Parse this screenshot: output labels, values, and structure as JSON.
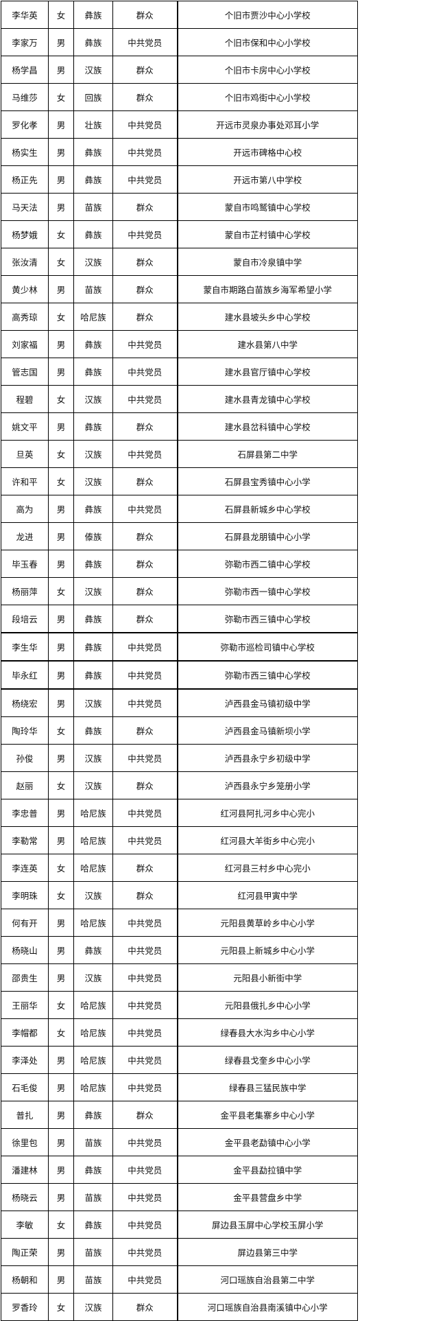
{
  "table": {
    "rows": [
      [
        "李华英",
        "女",
        "彝族",
        "群众",
        "个旧市贾沙中心小学校"
      ],
      [
        "李家万",
        "男",
        "彝族",
        "中共党员",
        "个旧市保和中心小学校"
      ],
      [
        "杨学昌",
        "男",
        "汉族",
        "群众",
        "个旧市卡房中心小学校"
      ],
      [
        "马维莎",
        "女",
        "回族",
        "群众",
        "个旧市鸡街中心小学校"
      ],
      [
        "罗化孝",
        "男",
        "壮族",
        "中共党员",
        "开远市灵泉办事处邓耳小学"
      ],
      [
        "杨实生",
        "男",
        "彝族",
        "中共党员",
        "开远市碑格中心校"
      ],
      [
        "杨正先",
        "男",
        "彝族",
        "中共党员",
        "开远市第八中学校"
      ],
      [
        "马天法",
        "男",
        "苗族",
        "群众",
        "蒙自市鸣鹫镇中心学校"
      ],
      [
        "杨梦娥",
        "女",
        "彝族",
        "中共党员",
        "蒙自市芷村镇中心学校"
      ],
      [
        "张汝清",
        "女",
        "汉族",
        "群众",
        "蒙自市冷泉镇中学"
      ],
      [
        "黄少林",
        "男",
        "苗族",
        "群众",
        "蒙自市期路白苗族乡海军希望小学"
      ],
      [
        "高秀琼",
        "女",
        "哈尼族",
        "群众",
        "建水县坡头乡中心学校"
      ],
      [
        "刘家福",
        "男",
        "彝族",
        "中共党员",
        "建水县第八中学"
      ],
      [
        "管志国",
        "男",
        "彝族",
        "中共党员",
        "建水县官厅镇中心学校"
      ],
      [
        "程碧",
        "女",
        "汉族",
        "中共党员",
        "建水县青龙镇中心学校"
      ],
      [
        "姚文平",
        "男",
        "彝族",
        "群众",
        "建水县岔科镇中心学校"
      ],
      [
        "旦英",
        "女",
        "汉族",
        "中共党员",
        "石屏县第二中学"
      ],
      [
        "许和平",
        "女",
        "汉族",
        "群众",
        "石屏县宝秀镇中心小学"
      ],
      [
        "高为",
        "男",
        "彝族",
        "中共党员",
        "石屏县新城乡中心学校"
      ],
      [
        "龙进",
        "男",
        "傣族",
        "群众",
        "石屏县龙朋镇中心小学"
      ],
      [
        "毕玉春",
        "男",
        "彝族",
        "群众",
        "弥勒市西二镇中心学校"
      ],
      [
        "杨丽萍",
        "女",
        "汉族",
        "群众",
        "弥勒市西一镇中心学校"
      ],
      [
        "段培云",
        "男",
        "彝族",
        "群众",
        "弥勒市西三镇中心学校"
      ],
      [
        "李生华",
        "男",
        "彝族",
        "中共党员",
        "弥勒市巡检司镇中心学校"
      ],
      [
        "毕永红",
        "男",
        "彝族",
        "中共党员",
        "弥勒市西三镇中心学校"
      ],
      [
        "杨绕宏",
        "男",
        "汉族",
        "中共党员",
        "泸西县金马镇初级中学"
      ],
      [
        "陶玲华",
        "女",
        "彝族",
        "群众",
        "泸西县金马镇新坝小学"
      ],
      [
        "孙俊",
        "男",
        "汉族",
        "中共党员",
        "泸西县永宁乡初级中学"
      ],
      [
        "赵丽",
        "女",
        "汉族",
        "群众",
        "泸西县永宁乡笼册小学"
      ],
      [
        "李忠普",
        "男",
        "哈尼族",
        "中共党员",
        "红河县阿扎河乡中心完小"
      ],
      [
        "李勒常",
        "男",
        "哈尼族",
        "中共党员",
        "红河县大羊街乡中心完小"
      ],
      [
        "李连英",
        "女",
        "哈尼族",
        "群众",
        "红河县三村乡中心完小"
      ],
      [
        "李明珠",
        "女",
        "汉族",
        "群众",
        "红河县甲寅中学"
      ],
      [
        "何有开",
        "男",
        "哈尼族",
        "中共党员",
        "元阳县黄草岭乡中心小学"
      ],
      [
        "杨晓山",
        "男",
        "彝族",
        "中共党员",
        "元阳县上新城乡中心小学"
      ],
      [
        "邵贵生",
        "男",
        "汉族",
        "中共党员",
        "元阳县小新街中学"
      ],
      [
        "王丽华",
        "女",
        "哈尼族",
        "中共党员",
        "元阳县俄扎乡中心小学"
      ],
      [
        "李帽都",
        "女",
        "哈尼族",
        "中共党员",
        "绿春县大水沟乡中心小学"
      ],
      [
        "李泽处",
        "男",
        "哈尼族",
        "中共党员",
        "绿春县戈奎乡中心小学"
      ],
      [
        "石毛俊",
        "男",
        "哈尼族",
        "中共党员",
        "绿春县三猛民族中学"
      ],
      [
        "普扎",
        "男",
        "彝族",
        "群众",
        "金平县老集寨乡中心小学"
      ],
      [
        "徐里包",
        "男",
        "苗族",
        "中共党员",
        "金平县老勐镇中心小学"
      ],
      [
        "潘建林",
        "男",
        "彝族",
        "中共党员",
        "金平县勐拉镇中学"
      ],
      [
        "杨晓云",
        "男",
        "苗族",
        "中共党员",
        "金平县营盘乡中学"
      ],
      [
        "李敏",
        "女",
        "彝族",
        "中共党员",
        "屏边县玉屏中心学校玉屏小学"
      ],
      [
        "陶正荣",
        "男",
        "苗族",
        "中共党员",
        "屏边县第三中学"
      ],
      [
        "杨朝和",
        "男",
        "苗族",
        "中共党员",
        "河口瑶族自治县第二中学"
      ],
      [
        "罗香玲",
        "女",
        "汉族",
        "群众",
        "河口瑶族自治县南溪镇中心小学"
      ]
    ]
  }
}
